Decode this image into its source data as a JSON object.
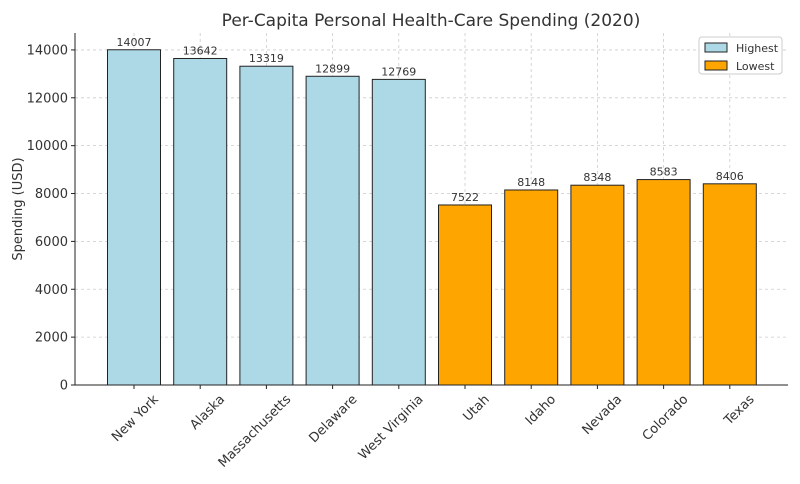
{
  "chart_data": {
    "type": "bar",
    "title": "Per-Capita Personal Health-Care Spending (2020)",
    "xlabel": "",
    "ylabel": "Spending (USD)",
    "ylim": [
      0,
      14707
    ],
    "yticks": [
      0,
      2000,
      4000,
      6000,
      8000,
      10000,
      12000,
      14000
    ],
    "grid": true,
    "legend_position": "top-right",
    "categories": [
      "New York",
      "Alaska",
      "Massachusetts",
      "Delaware",
      "West Virginia",
      "Utah",
      "Idaho",
      "Nevada",
      "Colorado",
      "Texas"
    ],
    "values": [
      14007,
      13642,
      13319,
      12899,
      12769,
      7522,
      8148,
      8348,
      8583,
      8406
    ],
    "groups": [
      "Highest",
      "Highest",
      "Highest",
      "Highest",
      "Highest",
      "Lowest",
      "Lowest",
      "Lowest",
      "Lowest",
      "Lowest"
    ],
    "series": [
      {
        "name": "Highest",
        "color": "#add8e6"
      },
      {
        "name": "Lowest",
        "color": "#ffa500"
      }
    ]
  }
}
